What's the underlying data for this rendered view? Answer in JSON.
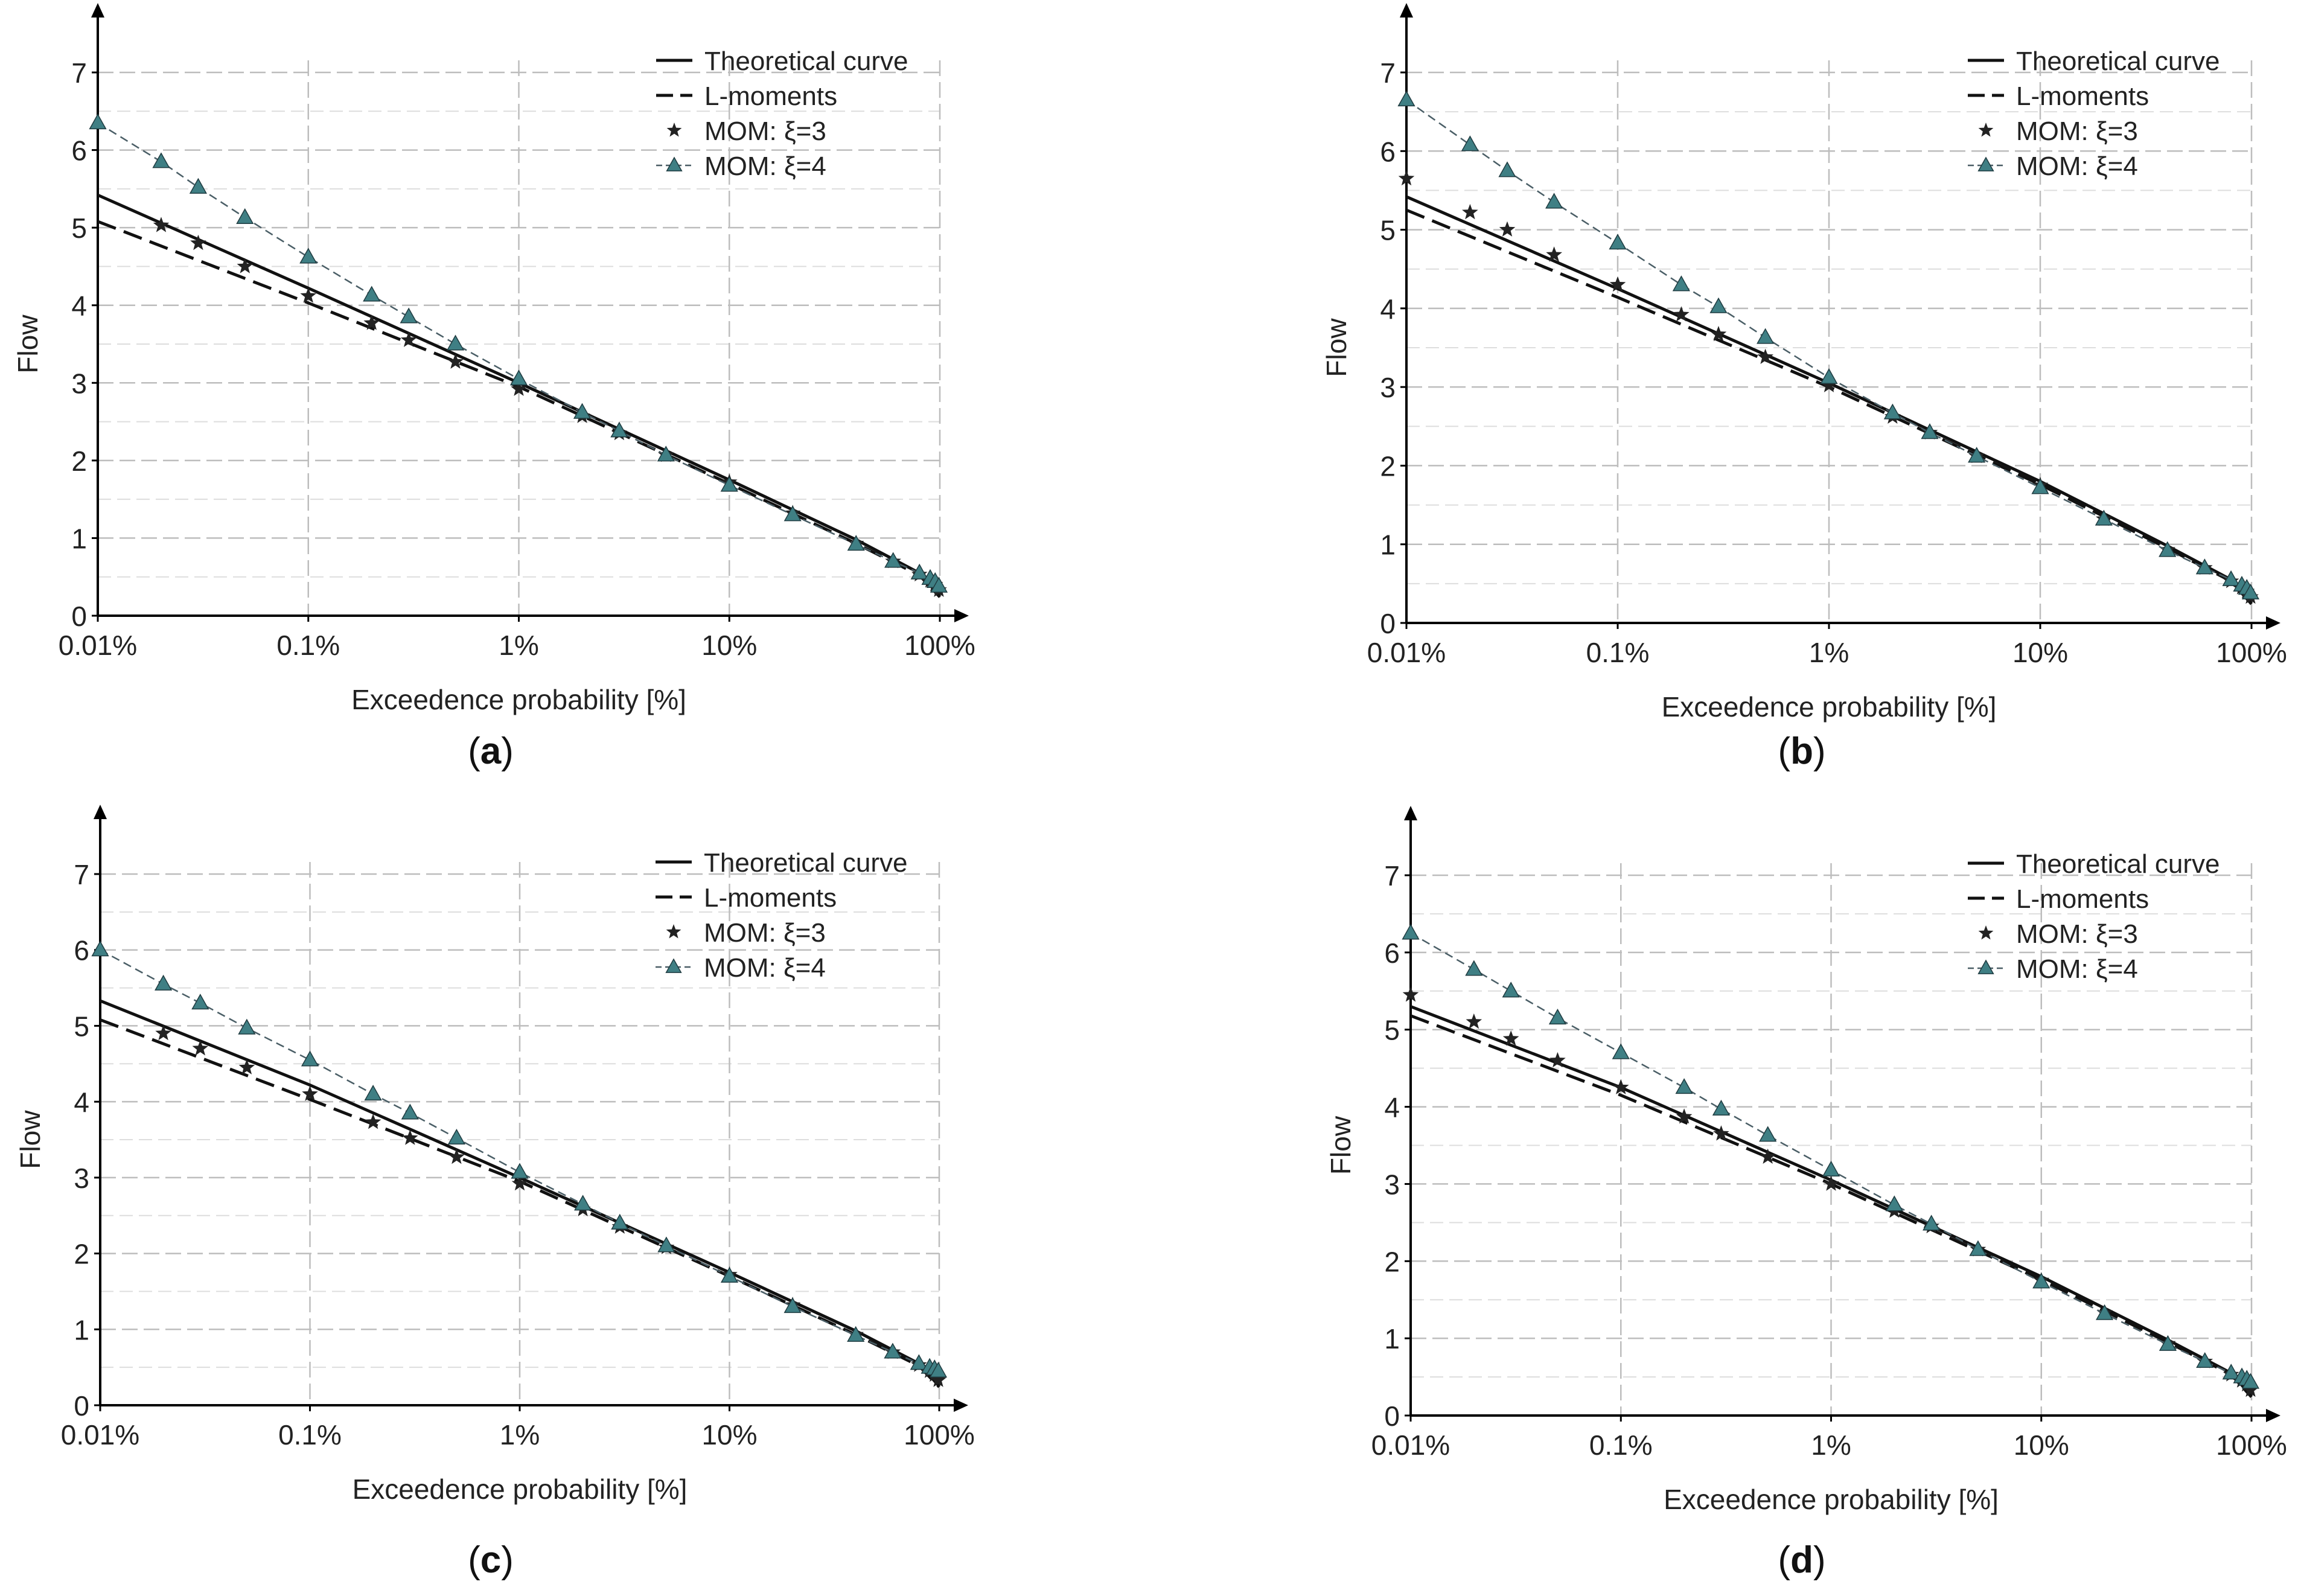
{
  "figure": {
    "colors": {
      "axis": "#000000",
      "grid_major": "#bdbdbd",
      "grid_minor": "#dddddd",
      "theoretical": "#111111",
      "lmoments": "#111111",
      "xi3": "#222222",
      "xi4_line": "#4a5e66",
      "xi4_marker": "#3f7f84"
    },
    "x_labels": [
      "0.01%",
      "0.1%",
      "1%",
      "10%",
      "100%"
    ],
    "y_ticks": [
      "0",
      "1",
      "2",
      "3",
      "4",
      "5",
      "6",
      "7"
    ]
  },
  "chart_data": [
    {
      "panel": "a",
      "caption": "(a)",
      "type": "line",
      "xscale": "log",
      "xlabel": "Exceedence probability [%]",
      "ylabel": "Flow",
      "xlim": [
        0.01,
        100
      ],
      "ylim": [
        0,
        7
      ],
      "grid": true,
      "legend_position": "top-right",
      "legend": [
        "Theoretical curve",
        "L-moments",
        "MOM: ξ=3",
        "MOM: ξ=4"
      ],
      "series": [
        {
          "name": "Theoretical curve",
          "style": "solid",
          "x": [
            0.01,
            0.1,
            1,
            10,
            40,
            80,
            100
          ],
          "y": [
            5.42,
            4.22,
            3.0,
            1.75,
            0.98,
            0.55,
            0.25
          ]
        },
        {
          "name": "L-moments",
          "style": "dashed",
          "x": [
            0.01,
            0.1,
            1,
            10,
            40,
            80,
            100
          ],
          "y": [
            5.08,
            4.03,
            2.95,
            1.7,
            0.93,
            0.52,
            0.24
          ]
        },
        {
          "name": "MOM: ξ=3",
          "style": "markers-star",
          "x": [
            0.02,
            0.03,
            0.05,
            0.1,
            0.2,
            0.3,
            0.5,
            1,
            2,
            3,
            5,
            10,
            20,
            40,
            60,
            80,
            90,
            95,
            99
          ],
          "y": [
            5.03,
            4.8,
            4.5,
            4.12,
            3.77,
            3.55,
            3.27,
            2.92,
            2.57,
            2.35,
            2.07,
            1.72,
            1.32,
            0.93,
            0.7,
            0.53,
            0.45,
            0.4,
            0.33
          ]
        },
        {
          "name": "MOM: ξ=4",
          "style": "dashed-triangles",
          "x": [
            0.01,
            0.02,
            0.03,
            0.05,
            0.1,
            0.2,
            0.3,
            0.5,
            1,
            2,
            3,
            5,
            10,
            20,
            40,
            60,
            80,
            90,
            95,
            99
          ],
          "y": [
            6.35,
            5.85,
            5.52,
            5.13,
            4.62,
            4.13,
            3.85,
            3.5,
            3.05,
            2.62,
            2.38,
            2.07,
            1.68,
            1.3,
            0.92,
            0.7,
            0.55,
            0.48,
            0.44,
            0.38
          ]
        }
      ]
    },
    {
      "panel": "b",
      "caption": "(b)",
      "type": "line",
      "xscale": "log",
      "xlabel": "Exceedence probability [%]",
      "ylabel": "Flow",
      "xlim": [
        0.01,
        100
      ],
      "ylim": [
        0,
        7
      ],
      "grid": true,
      "legend_position": "top-right",
      "legend": [
        "Theoretical curve",
        "L-moments",
        "MOM: ξ=3",
        "MOM: ξ=4"
      ],
      "series": [
        {
          "name": "Theoretical curve",
          "style": "solid",
          "x": [
            0.01,
            0.1,
            1,
            10,
            40,
            80,
            100
          ],
          "y": [
            5.42,
            4.25,
            3.05,
            1.8,
            0.98,
            0.55,
            0.25
          ]
        },
        {
          "name": "L-moments",
          "style": "dashed",
          "x": [
            0.01,
            0.1,
            1,
            10,
            40,
            80,
            100
          ],
          "y": [
            5.25,
            4.14,
            3.0,
            1.76,
            0.95,
            0.53,
            0.24
          ]
        },
        {
          "name": "MOM: ξ=3",
          "style": "markers-star",
          "x": [
            0.01,
            0.02,
            0.03,
            0.05,
            0.1,
            0.2,
            0.3,
            0.5,
            1,
            2,
            3,
            5,
            10,
            20,
            40,
            60,
            80,
            90,
            95,
            99
          ],
          "y": [
            5.65,
            5.22,
            5.0,
            4.68,
            4.3,
            3.92,
            3.67,
            3.38,
            3.02,
            2.62,
            2.42,
            2.12,
            1.75,
            1.32,
            0.93,
            0.7,
            0.53,
            0.45,
            0.4,
            0.33
          ]
        },
        {
          "name": "MOM: ξ=4",
          "style": "dashed-triangles",
          "x": [
            0.01,
            0.02,
            0.03,
            0.05,
            0.1,
            0.2,
            0.3,
            0.5,
            1,
            2,
            3,
            5,
            10,
            20,
            40,
            60,
            80,
            90,
            95,
            99
          ],
          "y": [
            6.65,
            6.08,
            5.75,
            5.35,
            4.83,
            4.3,
            4.02,
            3.63,
            3.12,
            2.67,
            2.42,
            2.12,
            1.72,
            1.32,
            0.92,
            0.7,
            0.55,
            0.48,
            0.44,
            0.38
          ]
        }
      ]
    },
    {
      "panel": "c",
      "caption": "(c)",
      "type": "line",
      "xscale": "log",
      "xlabel": "Exceedence probability [%]",
      "ylabel": "Flow",
      "xlim": [
        0.01,
        100
      ],
      "ylim": [
        0,
        7
      ],
      "grid": true,
      "legend_position": "top-right",
      "legend": [
        "Theoretical curve",
        "L-moments",
        "MOM: ξ=3",
        "MOM: ξ=4"
      ],
      "series": [
        {
          "name": "Theoretical curve",
          "style": "solid",
          "x": [
            0.01,
            0.1,
            1,
            10,
            40,
            80,
            100
          ],
          "y": [
            5.33,
            4.22,
            3.0,
            1.75,
            0.98,
            0.55,
            0.25
          ]
        },
        {
          "name": "L-moments",
          "style": "dashed",
          "x": [
            0.01,
            0.1,
            1,
            10,
            40,
            80,
            100
          ],
          "y": [
            5.08,
            4.03,
            2.95,
            1.7,
            0.93,
            0.52,
            0.24
          ]
        },
        {
          "name": "MOM: ξ=3",
          "style": "markers-star",
          "x": [
            0.02,
            0.03,
            0.05,
            0.1,
            0.2,
            0.3,
            0.5,
            1,
            2,
            3,
            5,
            10,
            20,
            40,
            60,
            80,
            90,
            95,
            99
          ],
          "y": [
            4.9,
            4.7,
            4.45,
            4.1,
            3.73,
            3.52,
            3.27,
            2.92,
            2.58,
            2.35,
            2.08,
            1.72,
            1.32,
            0.93,
            0.7,
            0.53,
            0.45,
            0.4,
            0.33
          ]
        },
        {
          "name": "MOM: ξ=4",
          "style": "dashed-triangles",
          "x": [
            0.01,
            0.02,
            0.03,
            0.05,
            0.1,
            0.2,
            0.3,
            0.5,
            1,
            2,
            3,
            5,
            10,
            20,
            40,
            60,
            80,
            90,
            95,
            99
          ],
          "y": [
            6.0,
            5.55,
            5.3,
            4.97,
            4.55,
            4.1,
            3.85,
            3.52,
            3.07,
            2.65,
            2.4,
            2.1,
            1.7,
            1.3,
            0.92,
            0.7,
            0.55,
            0.5,
            0.48,
            0.45
          ]
        }
      ]
    },
    {
      "panel": "d",
      "caption": "(d)",
      "type": "line",
      "xscale": "log",
      "xlabel": "Exceedence probability [%]",
      "ylabel": "Flow",
      "xlim": [
        0.01,
        100
      ],
      "ylim": [
        0,
        7
      ],
      "grid": true,
      "legend_position": "top-right",
      "legend": [
        "Theoretical curve",
        "L-moments",
        "MOM: ξ=3",
        "MOM: ξ=4"
      ],
      "series": [
        {
          "name": "Theoretical curve",
          "style": "solid",
          "x": [
            0.01,
            0.1,
            1,
            10,
            40,
            80,
            100
          ],
          "y": [
            5.3,
            4.25,
            3.05,
            1.8,
            0.98,
            0.55,
            0.25
          ]
        },
        {
          "name": "L-moments",
          "style": "dashed",
          "x": [
            0.01,
            0.1,
            1,
            10,
            40,
            80,
            100
          ],
          "y": [
            5.18,
            4.15,
            3.0,
            1.76,
            0.95,
            0.53,
            0.24
          ]
        },
        {
          "name": "MOM: ξ=3",
          "style": "markers-star",
          "x": [
            0.01,
            0.02,
            0.03,
            0.05,
            0.1,
            0.2,
            0.3,
            0.5,
            1,
            2,
            3,
            5,
            10,
            20,
            40,
            60,
            80,
            90,
            95,
            99
          ],
          "y": [
            5.45,
            5.1,
            4.88,
            4.6,
            4.25,
            3.87,
            3.65,
            3.35,
            3.0,
            2.65,
            2.45,
            2.15,
            1.75,
            1.33,
            0.93,
            0.7,
            0.53,
            0.45,
            0.4,
            0.33
          ]
        },
        {
          "name": "MOM: ξ=4",
          "style": "dashed-triangles",
          "x": [
            0.01,
            0.02,
            0.03,
            0.05,
            0.1,
            0.2,
            0.3,
            0.5,
            1,
            2,
            3,
            5,
            10,
            20,
            40,
            60,
            80,
            90,
            95,
            99
          ],
          "y": [
            6.25,
            5.78,
            5.5,
            5.15,
            4.7,
            4.25,
            3.97,
            3.63,
            3.18,
            2.73,
            2.48,
            2.15,
            1.73,
            1.32,
            0.92,
            0.7,
            0.55,
            0.5,
            0.47,
            0.43
          ]
        }
      ]
    }
  ]
}
